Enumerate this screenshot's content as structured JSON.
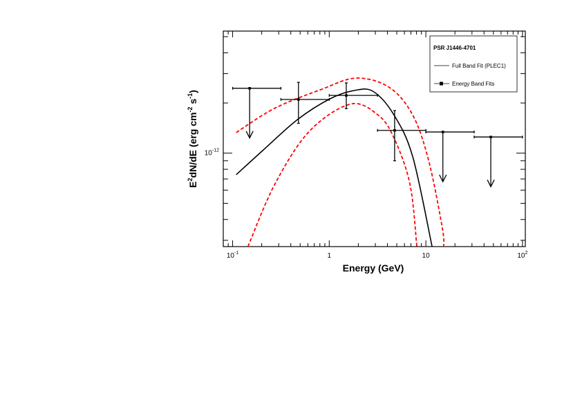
{
  "chart_data": {
    "type": "scatter",
    "title": "",
    "xlabel": "Energy (GeV)",
    "ylabel": {
      "base": "E",
      "sup1": "2",
      "rest": "dN/dE (erg cm",
      "sup2": "-2",
      "mid": " s",
      "sup3": "-1",
      "end": ")"
    },
    "xscale": "log",
    "yscale": "log",
    "xlim": [
      0.08,
      107
    ],
    "ylim": [
      2.75e-13,
      5.4e-12
    ],
    "x_tick_labels": [
      {
        "value": 0.1,
        "base": "10",
        "exp": "-1"
      },
      {
        "value": 1,
        "base": "1",
        "exp": ""
      },
      {
        "value": 10,
        "base": "10",
        "exp": ""
      },
      {
        "value": 100,
        "base": "10",
        "exp": "2"
      }
    ],
    "y_tick_labels": [
      {
        "value": 1e-12,
        "base": "10",
        "exp": "-12"
      }
    ],
    "legend": {
      "position": "top-right",
      "title": "PSR J1446-4701",
      "entries": [
        "Full Band Fit (PLEC1)",
        "Energy Band Fits"
      ]
    },
    "colors": {
      "fit": "#000000",
      "band": "#ff0000",
      "points": "#000000"
    },
    "series": [
      {
        "name": "Full Band Fit (PLEC1)",
        "style": "solid",
        "x": [
          0.109,
          0.206,
          0.469,
          1.02,
          1.84,
          2.87,
          4.69,
          7.32,
          11.6
        ],
        "y": [
          7.43e-13,
          1.04e-12,
          1.59e-12,
          2.12e-12,
          2.38e-12,
          2.34e-12,
          1.69e-12,
          9.5e-13,
          2.75e-13
        ]
      },
      {
        "name": "Fit uncertainty (upper)",
        "style": "dashed",
        "x": [
          0.109,
          0.273,
          0.81,
          1.9,
          4.18,
          7.32,
          10.7,
          14.8,
          15.3
        ],
        "y": [
          1.33e-12,
          1.86e-12,
          2.4e-12,
          2.82e-12,
          2.48e-12,
          1.69e-12,
          9e-13,
          3.56e-13,
          2.75e-13
        ]
      },
      {
        "name": "Fit uncertainty (lower)",
        "style": "dashed",
        "x": [
          0.144,
          0.273,
          0.62,
          1.66,
          3.21,
          4.69,
          6.85,
          8.07
        ],
        "y": [
          2.75e-13,
          6.5e-13,
          1.35e-12,
          1.97e-12,
          1.69e-12,
          1.23e-12,
          6.5e-13,
          2.75e-13
        ]
      },
      {
        "name": "Energy Band Fits",
        "style": "points",
        "points": [
          {
            "x": 0.15,
            "xlo": 0.1,
            "xhi": 0.316,
            "y": 2.45e-12,
            "upper_limit": true
          },
          {
            "x": 0.48,
            "xlo": 0.316,
            "xhi": 1.0,
            "y": 2.1e-12,
            "ylo": 1.51e-12,
            "yhi": 2.66e-12,
            "upper_limit": false
          },
          {
            "x": 1.5,
            "xlo": 1.0,
            "xhi": 3.16,
            "y": 2.22e-12,
            "ylo": 1.85e-12,
            "yhi": 2.64e-12,
            "upper_limit": false
          },
          {
            "x": 4.75,
            "xlo": 3.16,
            "xhi": 10.0,
            "y": 1.37e-12,
            "ylo": 9e-13,
            "yhi": 1.8e-12,
            "upper_limit": false
          },
          {
            "x": 15.0,
            "xlo": 10.0,
            "xhi": 31.6,
            "y": 1.34e-12,
            "upper_limit": true
          },
          {
            "x": 47.0,
            "xlo": 31.6,
            "xhi": 100.0,
            "y": 1.25e-12,
            "upper_limit": true
          }
        ]
      }
    ]
  }
}
